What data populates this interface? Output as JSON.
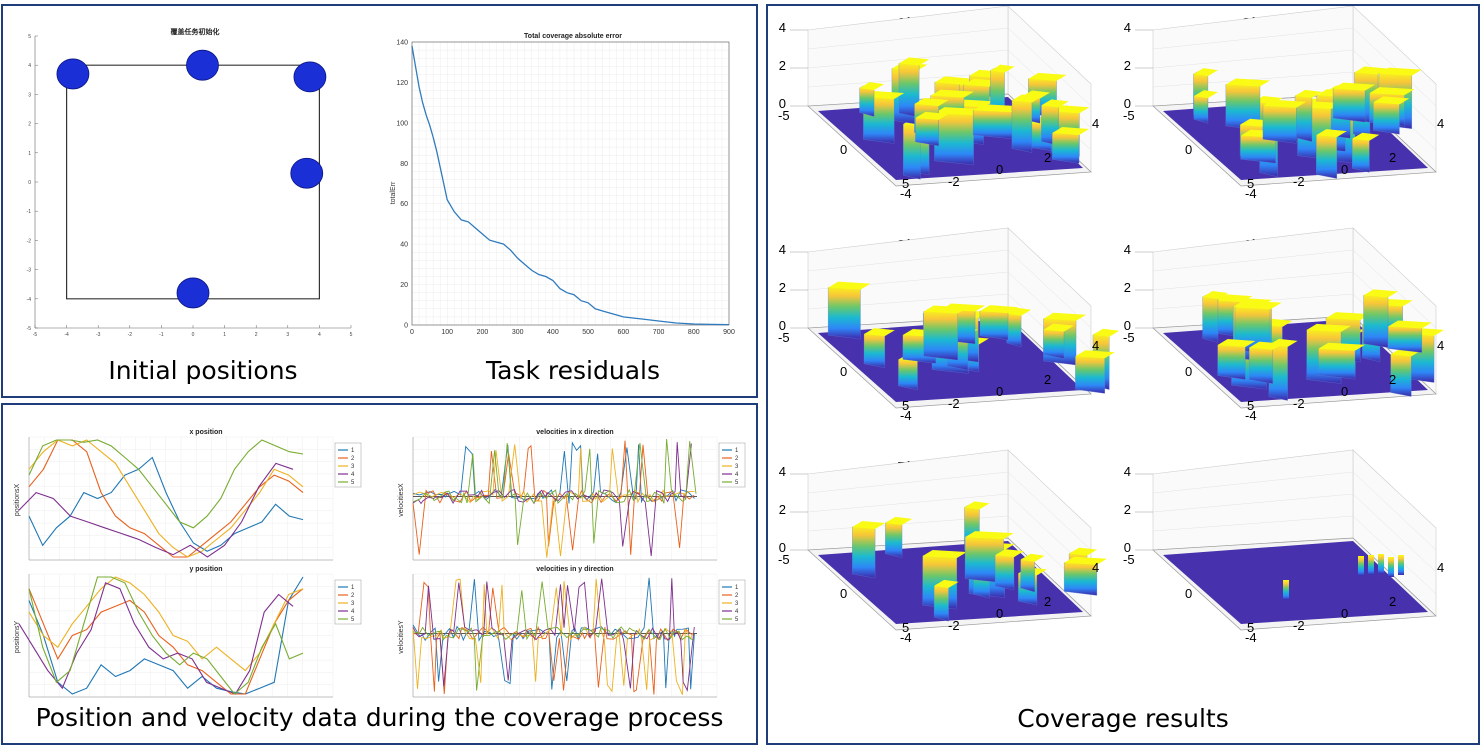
{
  "captions": {
    "initial": "Initial positions",
    "residuals": "Task residuals",
    "posvel": "Position and velocity data during the coverage process",
    "coverage": "Coverage results"
  },
  "chart_data": [
    {
      "id": "init",
      "type": "scatter",
      "title": "覆盖任务初始化",
      "xlim": [
        -5,
        5
      ],
      "ylim": [
        -5,
        5
      ],
      "xticks": [
        -5,
        -4,
        -3,
        -2,
        -1,
        0,
        1,
        2,
        3,
        4,
        5
      ],
      "yticks": [
        -5,
        -4,
        -3,
        -2,
        -1,
        0,
        1,
        2,
        3,
        4,
        5
      ],
      "region": [
        [
          -4,
          -4
        ],
        [
          4,
          -4
        ],
        [
          4,
          4
        ],
        [
          -4,
          4
        ]
      ],
      "points": [
        [
          -3.8,
          3.7
        ],
        [
          0.3,
          4.0
        ],
        [
          3.7,
          3.6
        ],
        [
          3.6,
          0.3
        ],
        [
          0,
          -3.8
        ]
      ],
      "marker_color": "#1a2fd6"
    },
    {
      "id": "err",
      "type": "line",
      "title": "Total coverage absolute error",
      "xlabel": "",
      "ylabel": "totalErr",
      "xlim": [
        0,
        900
      ],
      "ylim": [
        0,
        140
      ],
      "xticks": [
        0,
        100,
        200,
        300,
        400,
        500,
        600,
        700,
        800,
        900
      ],
      "yticks": [
        0,
        20,
        40,
        60,
        80,
        100,
        120,
        140
      ],
      "x": [
        0,
        10,
        20,
        30,
        40,
        50,
        60,
        70,
        80,
        90,
        100,
        120,
        140,
        160,
        180,
        200,
        220,
        240,
        260,
        280,
        300,
        320,
        340,
        360,
        380,
        400,
        420,
        440,
        460,
        480,
        500,
        520,
        540,
        560,
        580,
        600,
        650,
        700,
        750,
        800,
        850,
        900
      ],
      "y": [
        138,
        128,
        118,
        110,
        104,
        99,
        93,
        86,
        78,
        70,
        62,
        56,
        52,
        51,
        48,
        45,
        42,
        41,
        40,
        37,
        33,
        30,
        27,
        25,
        24,
        22,
        18,
        16,
        15,
        12,
        11,
        8,
        7,
        6,
        5,
        4,
        3,
        2,
        1,
        0.5,
        0.3,
        0.2
      ],
      "color": "#2f7bbf"
    },
    {
      "id": "xpos",
      "type": "line",
      "title": "x position",
      "ylabel": "positionsX",
      "legend": [
        "1",
        "2",
        "3",
        "4",
        "5"
      ],
      "colors": [
        "#1f77b4",
        "#e8601c",
        "#edb120",
        "#7e2f8e",
        "#77ac30"
      ],
      "series": [
        {
          "name": "1",
          "values": [
            0.35,
            0.1,
            0.25,
            0.35,
            0.55,
            0.5,
            0.55,
            0.7,
            0.75,
            0.85,
            0.55,
            0.3,
            0.12,
            0.05,
            0.1,
            0.2,
            0.25,
            0.3,
            0.45,
            0.35,
            0.32
          ]
        },
        {
          "name": "2",
          "values": [
            0.6,
            0.75,
            1.0,
            1.0,
            0.9,
            0.55,
            0.35,
            0.25,
            0.2,
            0.1,
            0.0,
            0.0,
            0.1,
            0.2,
            0.3,
            0.45,
            0.6,
            0.7,
            0.65,
            0.55
          ]
        },
        {
          "name": "3",
          "values": [
            0.75,
            0.9,
            1.0,
            0.95,
            1.0,
            0.9,
            0.8,
            0.6,
            0.4,
            0.2,
            0.08,
            0.0,
            0.05,
            0.15,
            0.25,
            0.4,
            0.55,
            0.75,
            0.7,
            0.6
          ]
        },
        {
          "name": "4",
          "values": [
            0.4,
            0.55,
            0.5,
            0.35,
            0.3,
            0.25,
            0.2,
            0.15,
            0.08,
            0.02,
            0.1,
            0.0,
            0.1,
            0.3,
            0.6,
            0.8,
            0.75
          ]
        },
        {
          "name": "5",
          "values": [
            0.7,
            0.95,
            1.0,
            1.0,
            0.98,
            1.0,
            0.95,
            0.85,
            0.75,
            0.6,
            0.45,
            0.3,
            0.25,
            0.35,
            0.5,
            0.75,
            0.9,
            1.0,
            0.95,
            0.9,
            0.88
          ]
        }
      ]
    },
    {
      "id": "xvel",
      "type": "line",
      "title": "velocities in x direction",
      "ylabel": "velocitiesX",
      "legend": [
        "1",
        "2",
        "3",
        "4",
        "5"
      ],
      "colors": [
        "#1f77b4",
        "#e8601c",
        "#edb120",
        "#7e2f8e",
        "#77ac30"
      ]
    },
    {
      "id": "ypos",
      "type": "line",
      "title": "y position",
      "ylabel": "positionsY",
      "legend": [
        "1",
        "2",
        "3",
        "4",
        "5"
      ],
      "colors": [
        "#1f77b4",
        "#e8601c",
        "#edb120",
        "#7e2f8e",
        "#77ac30"
      ],
      "series": [
        {
          "name": "1",
          "values": [
            0.8,
            0.5,
            0.1,
            0.0,
            0.05,
            0.25,
            0.15,
            0.2,
            0.3,
            0.25,
            0.2,
            0.05,
            0.15,
            0.05,
            0.02,
            0.0,
            0.05,
            0.1,
            0.8,
            1.0
          ]
        },
        {
          "name": "2",
          "values": [
            0.9,
            0.6,
            0.3,
            0.5,
            0.55,
            0.7,
            0.75,
            0.8,
            0.7,
            0.5,
            0.4,
            0.25,
            0.2,
            0.1,
            0.0,
            0.0,
            0.3,
            0.6,
            0.8,
            0.9
          ]
        },
        {
          "name": "3",
          "values": [
            0.7,
            0.5,
            0.4,
            0.6,
            0.75,
            0.9,
            1.0,
            0.95,
            0.85,
            0.7,
            0.5,
            0.45,
            0.3,
            0.4,
            0.3,
            0.2,
            0.35,
            0.6,
            0.85,
            0.9
          ]
        },
        {
          "name": "4",
          "values": [
            0.6,
            0.4,
            0.2,
            0.05,
            0.35,
            0.55,
            0.95,
            0.9,
            0.6,
            0.4,
            0.3,
            0.35,
            0.3,
            0.1,
            0.05,
            0.0,
            0.2,
            0.7,
            0.85,
            0.75
          ]
        },
        {
          "name": "5",
          "values": [
            0.9,
            0.4,
            0.1,
            0.2,
            0.6,
            1.0,
            1.0,
            0.95,
            0.7,
            0.5,
            0.35,
            0.25,
            0.35,
            0.3,
            0.15,
            0.0,
            0.1,
            0.4,
            0.6,
            0.3,
            0.35
          ]
        }
      ]
    },
    {
      "id": "yvel",
      "type": "line",
      "title": "velocities in y direction",
      "ylabel": "velocitiesY",
      "legend": [
        "1",
        "2",
        "3",
        "4",
        "5"
      ],
      "colors": [
        "#1f77b4",
        "#e8601c",
        "#edb120",
        "#7e2f8e",
        "#77ac30"
      ]
    },
    {
      "id": "surf",
      "type": "surface",
      "titles": [
        "1/6 total time",
        "2/6 total time",
        "3/6 total time",
        "4/6 total time",
        "5/6 total time",
        "total time"
      ],
      "zticks": [
        "0",
        "2",
        "4"
      ],
      "xticks": [
        "-5",
        "0",
        "5"
      ],
      "yticks": [
        "-4",
        "-2",
        "0",
        "2",
        "4"
      ],
      "colors": [
        "#3e26a8",
        "#2e87f7",
        "#1bb9d1",
        "#6cc76a",
        "#f7c53a",
        "#f9fb15"
      ]
    }
  ]
}
